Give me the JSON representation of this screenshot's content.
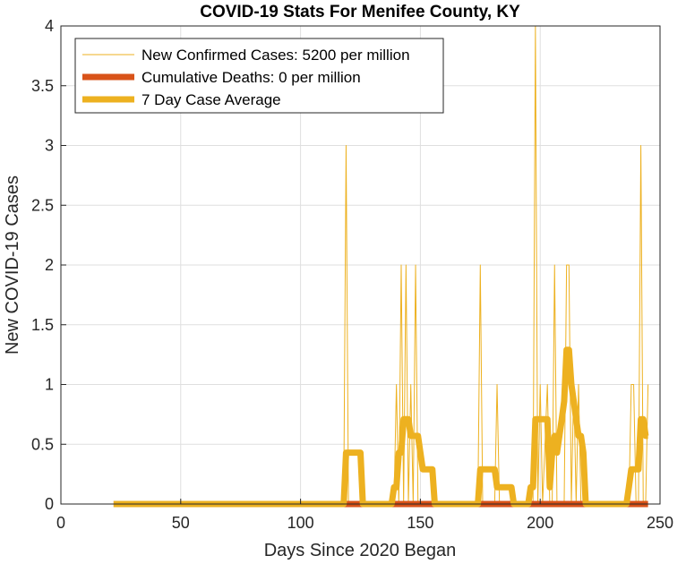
{
  "chart_data": {
    "type": "line",
    "title": "COVID-19 Stats For Menifee County, KY",
    "xlabel": "Days Since 2020 Began",
    "ylabel": "New COVID-19 Cases",
    "xlim": [
      0,
      250
    ],
    "ylim": [
      0,
      4
    ],
    "xticks": [
      0,
      50,
      100,
      150,
      200,
      250
    ],
    "yticks": [
      0,
      0.5,
      1,
      1.5,
      2,
      2.5,
      3,
      3.5,
      4
    ],
    "xtick_labels": [
      "0",
      "50",
      "100",
      "150",
      "200",
      "250"
    ],
    "ytick_labels": [
      "0",
      "0.5",
      "1",
      "1.5",
      "2",
      "2.5",
      "3",
      "3.5",
      "4"
    ],
    "grid": true,
    "legend_position": "top-left",
    "legend": [
      "New Confirmed Cases: 5200 per million",
      "Cumulative Deaths: 0 per million",
      "7 Day Case Average"
    ],
    "series": [
      {
        "name": "New Confirmed Cases: 5200 per million",
        "color": "#EDB120",
        "x": [
          22,
          118,
          119,
          120,
          139,
          140,
          141,
          142,
          143,
          144,
          145,
          146,
          147,
          148,
          149,
          174,
          175,
          176,
          181,
          182,
          183,
          189,
          190,
          196,
          197,
          198,
          199,
          200,
          201,
          203,
          204,
          205,
          206,
          207,
          210,
          211,
          212,
          213,
          214,
          215,
          216,
          217,
          218,
          237,
          238,
          239,
          240,
          241,
          242,
          243,
          244,
          245
        ],
        "y": [
          0,
          0,
          3,
          0,
          0,
          1,
          0,
          2,
          0,
          2,
          0,
          1,
          0,
          2,
          0,
          0,
          2,
          0,
          0,
          1,
          0,
          0,
          0,
          0,
          0,
          4,
          0,
          1,
          0,
          1,
          0,
          0,
          2,
          0,
          0,
          2,
          2,
          0,
          1,
          0,
          1,
          0,
          0,
          0,
          1,
          1,
          0,
          0,
          3,
          0,
          0,
          1
        ]
      },
      {
        "name": "Cumulative Deaths: 0 per million",
        "color": "#D95319",
        "x": [
          22,
          245
        ],
        "y": [
          0,
          0
        ]
      },
      {
        "name": "7 Day Case Average",
        "color": "#EDB120",
        "x": [
          22,
          118,
          119,
          120,
          125,
          126,
          138,
          139,
          140,
          141,
          142,
          143,
          144,
          145,
          146,
          147,
          148,
          149,
          150,
          151,
          152,
          153,
          155,
          156,
          173,
          174,
          175,
          176,
          181,
          182,
          183,
          188,
          189,
          190,
          195,
          196,
          197,
          198,
          199,
          200,
          201,
          202,
          203,
          204,
          205,
          206,
          207,
          208,
          209,
          210,
          211,
          212,
          213,
          214,
          215,
          216,
          217,
          218,
          219,
          236,
          237,
          238,
          239,
          240,
          241,
          242,
          243,
          244,
          245
        ],
        "y": [
          0,
          0,
          0.43,
          0.43,
          0.43,
          0,
          0,
          0.14,
          0.14,
          0.43,
          0.43,
          0.71,
          0.71,
          0.71,
          0.57,
          0.57,
          0.57,
          0.57,
          0.43,
          0.29,
          0.29,
          0.29,
          0.29,
          0,
          0,
          0,
          0.29,
          0.29,
          0.29,
          0.14,
          0.14,
          0.14,
          0,
          0,
          0,
          0.14,
          0.14,
          0.71,
          0.71,
          0.71,
          0.71,
          0.71,
          0.71,
          0.14,
          0.43,
          0.57,
          0.43,
          0.57,
          0.71,
          0.86,
          1.29,
          1.29,
          1.0,
          0.86,
          0.71,
          0.57,
          0.57,
          0.43,
          0,
          0,
          0.14,
          0.29,
          0.29,
          0.29,
          0.29,
          0.71,
          0.71,
          0.57,
          0.57
        ]
      }
    ]
  }
}
